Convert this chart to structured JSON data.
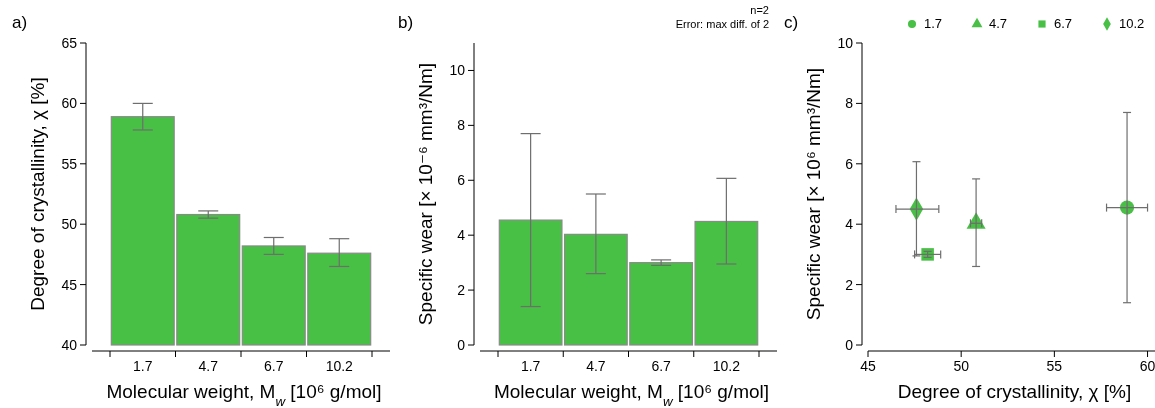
{
  "chart_data": [
    {
      "type": "bar",
      "title": "a)",
      "xlabel": "Molecular weight, M$_{w}$ [10⁶ g/mol]",
      "ylabel": "Degree of crystallinity, χ  [%]",
      "categories": [
        "1.7",
        "4.7",
        "6.7",
        "10.2"
      ],
      "values": [
        58.9,
        50.8,
        48.2,
        47.6
      ],
      "errors": [
        [
          57.8,
          60.0
        ],
        [
          50.5,
          51.1
        ],
        [
          47.5,
          48.9
        ],
        [
          46.5,
          48.8
        ]
      ],
      "color": "#48bf45",
      "ylim": [
        40,
        65
      ],
      "yticks": [
        40,
        45,
        50,
        55,
        60,
        65
      ]
    },
    {
      "type": "bar",
      "title": "b)",
      "xlabel": "Molecular weight, M$_{w}$ [10⁶ g/mol]",
      "ylabel": "Specific wear [× 10⁻⁶ mm³/Nm]",
      "categories": [
        "1.7",
        "4.7",
        "6.7",
        "10.2"
      ],
      "values": [
        4.55,
        4.03,
        3.0,
        4.5
      ],
      "errors": [
        [
          1.4,
          7.7
        ],
        [
          2.6,
          5.5
        ],
        [
          2.9,
          3.1
        ],
        [
          2.95,
          6.07
        ]
      ],
      "color": "#48bf45",
      "ylim": [
        0,
        11
      ],
      "yticks": [
        0,
        2,
        4,
        6,
        8,
        10
      ],
      "annotations": [
        "n=2",
        "Error: max diff. of 2"
      ]
    },
    {
      "type": "scatter",
      "title": "c)",
      "xlabel": "Degree of crystallinity, χ  [%]",
      "ylabel": "Specific wear [× 10⁶ mm³/Nm]",
      "xlim": [
        45,
        60.4
      ],
      "xticks": [
        45,
        50,
        55,
        60
      ],
      "ylim": [
        0,
        10
      ],
      "yticks": [
        0,
        2,
        4,
        6,
        8,
        10
      ],
      "legend": "top",
      "series": [
        {
          "name": "1.7",
          "color": "#48bf45",
          "marker": "circle",
          "x": [
            58.9
          ],
          "values": [
            4.55
          ],
          "xerrors": [
            [
              57.8,
              60.0
            ]
          ],
          "errors": [
            [
              1.4,
              7.7
            ]
          ]
        },
        {
          "name": "4.7",
          "color": "#48bf45",
          "marker": "triangle",
          "x": [
            50.8
          ],
          "values": [
            4.03
          ],
          "xerrors": [
            [
              50.5,
              51.1
            ]
          ],
          "errors": [
            [
              2.6,
              5.5
            ]
          ]
        },
        {
          "name": "6.7",
          "color": "#48bf45",
          "marker": "square",
          "x": [
            48.2
          ],
          "values": [
            3.0
          ],
          "xerrors": [
            [
              47.5,
              48.9
            ]
          ],
          "errors": [
            [
              2.9,
              3.1
            ]
          ]
        },
        {
          "name": "10.2",
          "color": "#48bf45",
          "marker": "diamond",
          "x": [
            47.6
          ],
          "values": [
            4.5
          ],
          "xerrors": [
            [
              46.5,
              48.8
            ]
          ],
          "errors": [
            [
              2.95,
              6.07
            ]
          ]
        }
      ]
    }
  ]
}
